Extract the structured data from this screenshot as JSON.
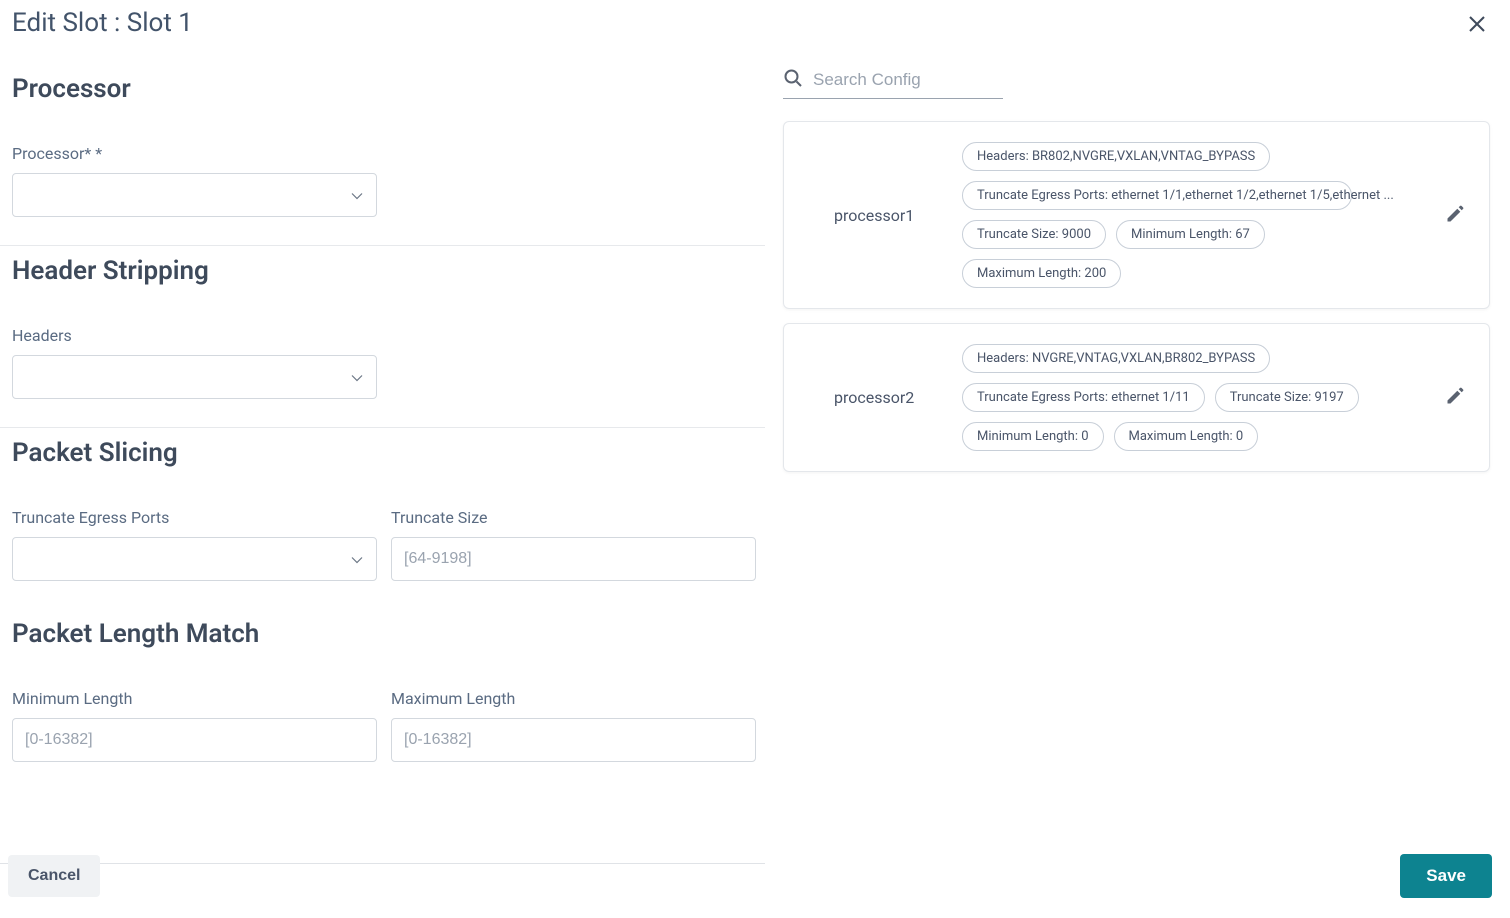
{
  "dialog": {
    "title": "Edit Slot : Slot 1"
  },
  "form": {
    "processor": {
      "section_title": "Processor",
      "field_label": "Processor* *"
    },
    "header_stripping": {
      "section_title": "Header Stripping",
      "field_label": "Headers"
    },
    "packet_slicing": {
      "section_title": "Packet Slicing",
      "ports_label": "Truncate Egress Ports",
      "size_label": "Truncate Size",
      "size_placeholder": "[64-9198]"
    },
    "packet_length_match": {
      "section_title": "Packet Length Match",
      "min_label": "Minimum Length",
      "min_placeholder": "[0-16382]",
      "max_label": "Maximum Length",
      "max_placeholder": "[0-16382]"
    }
  },
  "search": {
    "placeholder": "Search Config"
  },
  "cards": [
    {
      "name": "processor1",
      "chips": [
        "Headers: BR802,NVGRE,VXLAN,VNTAG_BYPASS",
        "Truncate Egress Ports: ethernet 1/1,ethernet 1/2,ethernet 1/5,ethernet ...",
        "Truncate Size: 9000",
        "Minimum Length: 67",
        "Maximum Length: 200"
      ]
    },
    {
      "name": "processor2",
      "chips": [
        "Headers: NVGRE,VNTAG,VXLAN,BR802_BYPASS",
        "Truncate Egress Ports: ethernet 1/11",
        "Truncate Size: 9197",
        "Minimum Length: 0",
        "Maximum Length: 0"
      ]
    }
  ],
  "buttons": {
    "cancel": "Cancel",
    "save": "Save"
  },
  "colors": {
    "primary": "#0d8390",
    "text": "#3e4a5b",
    "muted": "#9aa3af",
    "border": "#d3d8de",
    "card_border": "#e4e7eb",
    "chip_border": "#c8cfd8",
    "cancel_bg": "#f0f2f4"
  }
}
